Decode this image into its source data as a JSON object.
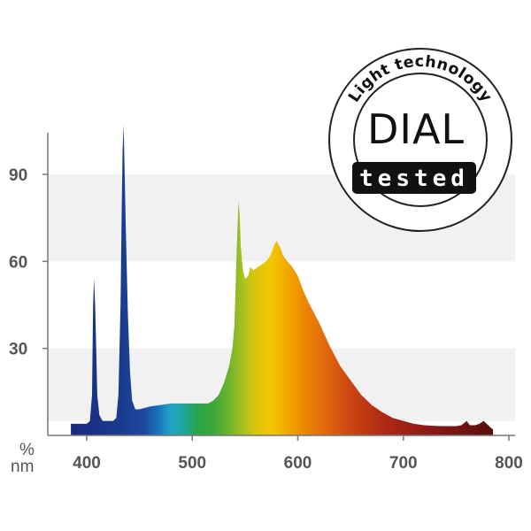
{
  "chart_data": {
    "type": "area",
    "title": "",
    "xlabel": "nm",
    "ylabel": "%",
    "xlim": [
      385,
      800
    ],
    "ylim": [
      0,
      110
    ],
    "x_ticks": [
      400,
      500,
      600,
      700,
      800
    ],
    "y_ticks": [
      30,
      60,
      90
    ],
    "grid": "alternating horizontal bands",
    "band_color": "#f1f1f1",
    "fill": "visible-spectrum gradient by wavelength",
    "series": [
      {
        "points": [
          [
            385,
            4
          ],
          [
            400,
            4
          ],
          [
            403,
            5
          ],
          [
            405,
            14
          ],
          [
            406,
            45
          ],
          [
            407,
            54
          ],
          [
            408,
            45
          ],
          [
            409,
            30
          ],
          [
            410,
            14
          ],
          [
            412,
            7
          ],
          [
            415,
            5
          ],
          [
            420,
            5
          ],
          [
            425,
            5
          ],
          [
            428,
            6
          ],
          [
            430,
            14
          ],
          [
            432,
            45
          ],
          [
            433,
            75
          ],
          [
            434,
            98
          ],
          [
            435,
            107
          ],
          [
            436,
            90
          ],
          [
            437,
            72
          ],
          [
            439,
            42
          ],
          [
            441,
            22
          ],
          [
            443,
            12
          ],
          [
            446,
            9
          ],
          [
            450,
            9
          ],
          [
            460,
            10
          ],
          [
            480,
            11
          ],
          [
            500,
            11
          ],
          [
            515,
            11
          ],
          [
            520,
            12
          ],
          [
            525,
            14
          ],
          [
            530,
            18
          ],
          [
            535,
            24
          ],
          [
            538,
            30
          ],
          [
            540,
            38
          ],
          [
            541,
            50
          ],
          [
            542,
            62
          ],
          [
            543,
            73
          ],
          [
            544,
            81
          ],
          [
            545,
            75
          ],
          [
            546,
            65
          ],
          [
            548,
            57
          ],
          [
            550,
            54
          ],
          [
            553,
            55
          ],
          [
            555,
            58
          ],
          [
            558,
            57
          ],
          [
            562,
            58
          ],
          [
            566,
            59
          ],
          [
            570,
            60
          ],
          [
            574,
            62
          ],
          [
            578,
            66
          ],
          [
            580,
            67
          ],
          [
            583,
            65
          ],
          [
            586,
            62
          ],
          [
            590,
            60
          ],
          [
            595,
            58
          ],
          [
            600,
            55
          ],
          [
            605,
            50
          ],
          [
            610,
            46
          ],
          [
            620,
            39
          ],
          [
            630,
            31
          ],
          [
            640,
            24
          ],
          [
            650,
            19
          ],
          [
            660,
            14
          ],
          [
            670,
            10.5
          ],
          [
            680,
            8
          ],
          [
            690,
            6
          ],
          [
            700,
            5
          ],
          [
            710,
            4
          ],
          [
            720,
            3.5
          ],
          [
            730,
            3.3
          ],
          [
            740,
            3.2
          ],
          [
            750,
            3.2
          ],
          [
            755,
            3.5
          ],
          [
            760,
            5
          ],
          [
            763,
            3.5
          ],
          [
            768,
            3.5
          ],
          [
            772,
            4
          ],
          [
            776,
            5
          ],
          [
            779,
            4
          ],
          [
            782,
            3
          ],
          [
            785,
            2
          ]
        ]
      }
    ],
    "seal": {
      "arc_text": "Light technology",
      "main_text": "DIAL",
      "badge_text": "tested"
    }
  }
}
